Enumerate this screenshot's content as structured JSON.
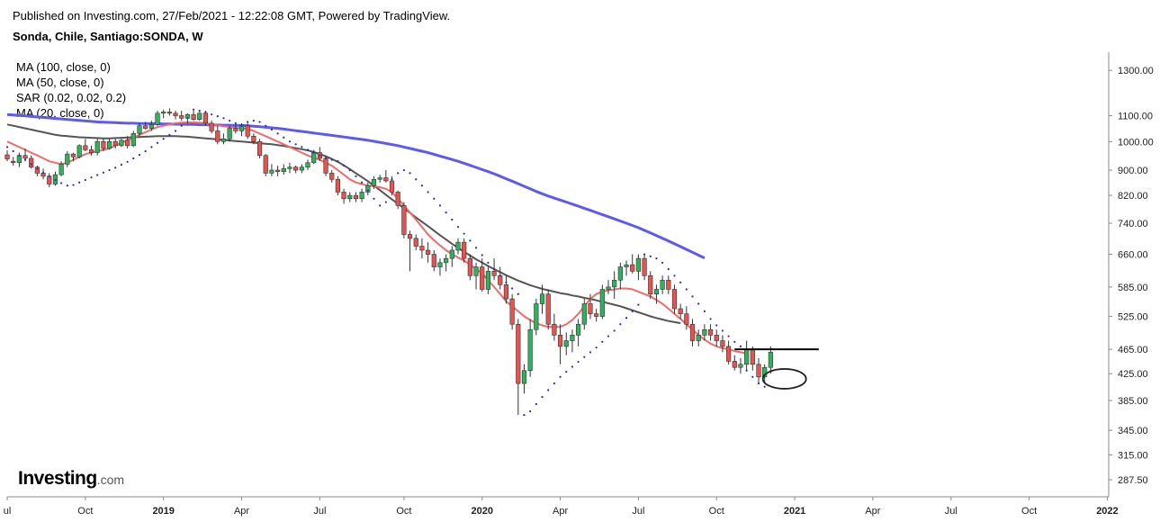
{
  "header": {
    "published": "Published on Investing.com, 27/Feb/2021 - 12:22:08 GMT, Powered by TradingView.",
    "symbol": "Sonda, Chile, Santiago:SONDA, W"
  },
  "legend": {
    "items": [
      "MA (100, close, 0)",
      "MA (50, close, 0)",
      "SAR (0.02, 0.02, 0.2)",
      "MA (20, close, 0)"
    ]
  },
  "logo": {
    "main": "Investing",
    "suffix": ".com"
  },
  "colors": {
    "up": "#2fb35a",
    "down": "#e8524f",
    "ma100": "#5b5bf0",
    "ma50": "#555555",
    "ma20": "#f26b6b",
    "sar": "#2a2aa8",
    "annotation": "#222222"
  },
  "chart_data": {
    "type": "candlestick",
    "y_scale": "log",
    "ylim": [
      270,
      1390
    ],
    "y_ticks": [
      {
        "value": 1300,
        "label": "1300.00"
      },
      {
        "value": 1100,
        "label": "1100.00"
      },
      {
        "value": 1000,
        "label": "1000.00"
      },
      {
        "value": 900,
        "label": "900.00"
      },
      {
        "value": 820,
        "label": "820.00"
      },
      {
        "value": 740,
        "label": "740.00"
      },
      {
        "value": 660,
        "label": "660.00"
      },
      {
        "value": 585,
        "label": "585.00"
      },
      {
        "value": 525,
        "label": "525.00"
      },
      {
        "value": 465,
        "label": "465.00"
      },
      {
        "value": 425,
        "label": "425.00"
      },
      {
        "value": 385,
        "label": "385.00"
      },
      {
        "value": 345,
        "label": "345.00"
      },
      {
        "value": 315,
        "label": "315.00"
      },
      {
        "value": 287.5,
        "label": "287.50"
      }
    ],
    "x_ticks": [
      {
        "week": 0,
        "label": "ul",
        "bold": false
      },
      {
        "week": 13,
        "label": "Oct",
        "bold": false
      },
      {
        "week": 26,
        "label": "2019",
        "bold": true
      },
      {
        "week": 39,
        "label": "Apr",
        "bold": false
      },
      {
        "week": 52,
        "label": "Jul",
        "bold": false
      },
      {
        "week": 66,
        "label": "Oct",
        "bold": false
      },
      {
        "week": 79,
        "label": "2020",
        "bold": true
      },
      {
        "week": 92,
        "label": "Apr",
        "bold": false
      },
      {
        "week": 105,
        "label": "Jul",
        "bold": false
      },
      {
        "week": 118,
        "label": "Oct",
        "bold": false
      },
      {
        "week": 131,
        "label": "2021",
        "bold": true
      },
      {
        "week": 144,
        "label": "Apr",
        "bold": false
      },
      {
        "week": 157,
        "label": "Jul",
        "bold": false
      },
      {
        "week": 170,
        "label": "Oct",
        "bold": false
      },
      {
        "week": 183,
        "label": "2022",
        "bold": true
      }
    ],
    "x_range_weeks": [
      0,
      185
    ],
    "candles": [
      [
        952,
        968,
        930,
        938
      ],
      [
        930,
        945,
        915,
        925
      ],
      [
        925,
        960,
        910,
        950
      ],
      [
        950,
        975,
        930,
        940
      ],
      [
        940,
        950,
        905,
        910
      ],
      [
        910,
        915,
        880,
        890
      ],
      [
        890,
        905,
        870,
        880
      ],
      [
        880,
        890,
        845,
        855
      ],
      [
        855,
        895,
        850,
        885
      ],
      [
        885,
        930,
        880,
        920
      ],
      [
        920,
        965,
        910,
        955
      ],
      [
        955,
        960,
        930,
        945
      ],
      [
        945,
        990,
        940,
        985
      ],
      [
        985,
        1010,
        965,
        970
      ],
      [
        970,
        985,
        950,
        960
      ],
      [
        960,
        1010,
        950,
        1000
      ],
      [
        1000,
        1010,
        965,
        975
      ],
      [
        975,
        1010,
        970,
        1000
      ],
      [
        1000,
        1010,
        975,
        985
      ],
      [
        985,
        1010,
        980,
        1005
      ],
      [
        1005,
        1020,
        975,
        985
      ],
      [
        985,
        1040,
        980,
        1030
      ],
      [
        1030,
        1070,
        1020,
        1060
      ],
      [
        1060,
        1075,
        1045,
        1050
      ],
      [
        1050,
        1080,
        1040,
        1065
      ],
      [
        1065,
        1120,
        1060,
        1110
      ],
      [
        1110,
        1125,
        1090,
        1115
      ],
      [
        1115,
        1130,
        1100,
        1110
      ],
      [
        1110,
        1120,
        1085,
        1100
      ],
      [
        1100,
        1120,
        1080,
        1090
      ],
      [
        1090,
        1110,
        1070,
        1105
      ],
      [
        1105,
        1120,
        1080,
        1085
      ],
      [
        1085,
        1115,
        1080,
        1110
      ],
      [
        1110,
        1120,
        1060,
        1070
      ],
      [
        1070,
        1080,
        1030,
        1040
      ],
      [
        1040,
        1060,
        990,
        1000
      ],
      [
        1000,
        1030,
        990,
        1010
      ],
      [
        1010,
        1060,
        1000,
        1050
      ],
      [
        1050,
        1070,
        1030,
        1040
      ],
      [
        1040,
        1070,
        1020,
        1060
      ],
      [
        1060,
        1070,
        1010,
        1020
      ],
      [
        1020,
        1030,
        990,
        1000
      ],
      [
        1000,
        1010,
        940,
        950
      ],
      [
        950,
        955,
        880,
        890
      ],
      [
        890,
        920,
        880,
        900
      ],
      [
        900,
        915,
        880,
        895
      ],
      [
        895,
        920,
        885,
        905
      ],
      [
        905,
        925,
        890,
        910
      ],
      [
        910,
        915,
        890,
        900
      ],
      [
        900,
        920,
        890,
        910
      ],
      [
        910,
        935,
        900,
        925
      ],
      [
        925,
        970,
        920,
        960
      ],
      [
        960,
        980,
        930,
        940
      ],
      [
        940,
        950,
        880,
        890
      ],
      [
        890,
        900,
        860,
        870
      ],
      [
        870,
        880,
        820,
        830
      ],
      [
        830,
        840,
        795,
        810
      ],
      [
        810,
        830,
        800,
        820
      ],
      [
        820,
        830,
        800,
        810
      ],
      [
        810,
        840,
        800,
        830
      ],
      [
        830,
        860,
        820,
        850
      ],
      [
        850,
        880,
        840,
        870
      ],
      [
        870,
        885,
        860,
        875
      ],
      [
        875,
        900,
        860,
        865
      ],
      [
        865,
        880,
        820,
        830
      ],
      [
        830,
        835,
        780,
        790
      ],
      [
        790,
        800,
        700,
        710
      ],
      [
        710,
        720,
        620,
        700
      ],
      [
        700,
        710,
        670,
        680
      ],
      [
        680,
        700,
        650,
        670
      ],
      [
        670,
        690,
        640,
        660
      ],
      [
        660,
        670,
        620,
        630
      ],
      [
        630,
        650,
        610,
        640
      ],
      [
        640,
        660,
        620,
        650
      ],
      [
        650,
        680,
        630,
        670
      ],
      [
        670,
        700,
        660,
        690
      ],
      [
        690,
        700,
        640,
        650
      ],
      [
        650,
        660,
        600,
        610
      ],
      [
        610,
        640,
        580,
        630
      ],
      [
        630,
        650,
        575,
        580
      ],
      [
        580,
        630,
        570,
        620
      ],
      [
        620,
        650,
        600,
        610
      ],
      [
        610,
        630,
        580,
        590
      ],
      [
        590,
        610,
        550,
        560
      ],
      [
        560,
        570,
        500,
        510
      ],
      [
        510,
        520,
        365,
        410
      ],
      [
        410,
        440,
        395,
        430
      ],
      [
        430,
        520,
        420,
        500
      ],
      [
        500,
        560,
        490,
        550
      ],
      [
        550,
        590,
        530,
        570
      ],
      [
        570,
        580,
        500,
        510
      ],
      [
        510,
        530,
        480,
        490
      ],
      [
        490,
        510,
        440,
        470
      ],
      [
        470,
        495,
        455,
        480
      ],
      [
        480,
        500,
        460,
        490
      ],
      [
        490,
        520,
        470,
        510
      ],
      [
        510,
        560,
        500,
        550
      ],
      [
        550,
        570,
        520,
        530
      ],
      [
        530,
        540,
        515,
        525
      ],
      [
        525,
        590,
        520,
        580
      ],
      [
        580,
        600,
        570,
        585
      ],
      [
        585,
        620,
        560,
        600
      ],
      [
        600,
        640,
        580,
        630
      ],
      [
        630,
        645,
        610,
        635
      ],
      [
        635,
        660,
        615,
        620
      ],
      [
        620,
        660,
        600,
        650
      ],
      [
        650,
        660,
        600,
        610
      ],
      [
        610,
        620,
        560,
        570
      ],
      [
        570,
        590,
        550,
        580
      ],
      [
        580,
        610,
        570,
        600
      ],
      [
        600,
        610,
        570,
        580
      ],
      [
        580,
        590,
        530,
        540
      ],
      [
        540,
        550,
        520,
        530
      ],
      [
        530,
        545,
        500,
        510
      ],
      [
        510,
        520,
        470,
        480
      ],
      [
        480,
        500,
        470,
        490
      ],
      [
        490,
        510,
        480,
        500
      ],
      [
        500,
        510,
        480,
        490
      ],
      [
        490,
        500,
        470,
        480
      ],
      [
        480,
        490,
        460,
        470
      ],
      [
        470,
        480,
        440,
        445
      ],
      [
        445,
        455,
        430,
        435
      ],
      [
        435,
        450,
        425,
        440
      ],
      [
        440,
        480,
        430,
        465
      ],
      [
        465,
        470,
        430,
        440
      ],
      [
        440,
        450,
        410,
        420
      ],
      [
        420,
        440,
        410,
        435
      ],
      [
        435,
        470,
        425,
        460
      ]
    ],
    "lines": {
      "ma20": [
        1000,
        990,
        980,
        970,
        960,
        950,
        940,
        930,
        925,
        920,
        925,
        935,
        945,
        955,
        960,
        965,
        970,
        975,
        985,
        995,
        1005,
        1015,
        1025,
        1035,
        1045,
        1055,
        1060,
        1065,
        1070,
        1072,
        1073,
        1073,
        1072,
        1070,
        1066,
        1062,
        1058,
        1055,
        1052,
        1050,
        1048,
        1040,
        1030,
        1020,
        1010,
        1000,
        990,
        980,
        970,
        960,
        950,
        942,
        935,
        925,
        915,
        900,
        885,
        870,
        860,
        855,
        850,
        848,
        845,
        840,
        830,
        810,
        790,
        770,
        750,
        730,
        710,
        695,
        682,
        670,
        660,
        652,
        645,
        635,
        625,
        615,
        600,
        585,
        570,
        555,
        545,
        535,
        525,
        518,
        512,
        508,
        505,
        505,
        505,
        510,
        518,
        530,
        545,
        560,
        570,
        575,
        578,
        580,
        582,
        582,
        580,
        575,
        570,
        565,
        558,
        550,
        540,
        530,
        520,
        510,
        500,
        490,
        482,
        475,
        470,
        467,
        465,
        462,
        460,
        458
      ],
      "ma50": [
        1065,
        1060,
        1055,
        1050,
        1045,
        1040,
        1035,
        1030,
        1025,
        1022,
        1020,
        1018,
        1016,
        1015,
        1014,
        1013,
        1012,
        1012,
        1013,
        1014,
        1015,
        1016,
        1017,
        1018,
        1019,
        1020,
        1020,
        1020,
        1020,
        1019,
        1018,
        1016,
        1014,
        1012,
        1010,
        1008,
        1006,
        1004,
        1002,
        1000,
        998,
        996,
        994,
        992,
        990,
        987,
        984,
        980,
        976,
        972,
        968,
        962,
        955,
        947,
        938,
        928,
        916,
        903,
        890,
        877,
        864,
        850,
        836,
        822,
        808,
        795,
        782,
        769,
        756,
        744,
        732,
        720,
        708,
        697,
        686,
        676,
        666,
        657,
        648,
        640,
        632,
        625,
        618,
        611,
        605,
        599,
        594,
        589,
        585,
        581,
        578,
        575,
        572,
        570,
        567,
        565,
        562,
        560,
        557,
        554,
        551,
        548,
        545,
        541,
        537,
        533,
        529,
        525,
        522,
        519,
        516,
        514,
        512
      ],
      "ma100": [
        1105,
        1103,
        1101,
        1099,
        1097,
        1095,
        1093,
        1091,
        1089,
        1087,
        1085,
        1083,
        1081,
        1079,
        1077,
        1075,
        1074,
        1073,
        1072,
        1071,
        1070,
        1070,
        1069,
        1069,
        1068,
        1068,
        1067,
        1067,
        1066,
        1066,
        1065,
        1065,
        1064,
        1064,
        1063,
        1063,
        1062,
        1062,
        1061,
        1061,
        1060,
        1058,
        1056,
        1054,
        1052,
        1050,
        1047,
        1044,
        1041,
        1038,
        1035,
        1032,
        1029,
        1026,
        1023,
        1020,
        1017,
        1014,
        1011,
        1008,
        1005,
        1001,
        997,
        993,
        989,
        985,
        980,
        975,
        970,
        965,
        960,
        954,
        948,
        942,
        936,
        930,
        923,
        916,
        909,
        902,
        895,
        888,
        880,
        872,
        864,
        856,
        848,
        840,
        832,
        825,
        818,
        812,
        806,
        800,
        794,
        788,
        782,
        776,
        770,
        764,
        758,
        752,
        746,
        740,
        734,
        728,
        721,
        714,
        707,
        700,
        693,
        686,
        679,
        672,
        665,
        658,
        651
      ],
      "ma100_start_week": 0,
      "ma50_start_week": 0,
      "ma20_start_week": 0
    },
    "sar": [
      980,
      965,
      950,
      935,
      920,
      905,
      892,
      880,
      868,
      858,
      850,
      852,
      860,
      868,
      876,
      884,
      892,
      900,
      908,
      918,
      928,
      940,
      952,
      965,
      980,
      995,
      1010,
      1025,
      1040,
      1060,
      1090,
      1125,
      1120,
      1115,
      1105,
      1098,
      1090,
      1080,
      1070,
      1060,
      1075,
      1080,
      1075,
      1060,
      1045,
      1030,
      1015,
      1000,
      990,
      980,
      970,
      960,
      950,
      940,
      935,
      930,
      915,
      900,
      880,
      860,
      835,
      810,
      790,
      800,
      870,
      890,
      900,
      890,
      870,
      850,
      830,
      810,
      790,
      770,
      750,
      730,
      712,
      694,
      676,
      658,
      640,
      625,
      610,
      595,
      582,
      570,
      365,
      370,
      380,
      390,
      400,
      410,
      420,
      428,
      436,
      444,
      452,
      460,
      468,
      478,
      488,
      498,
      510,
      522,
      535,
      548,
      660,
      655,
      650,
      640,
      625,
      610,
      595,
      580,
      565,
      550,
      535,
      520,
      508,
      498,
      488,
      478,
      470,
      430,
      420,
      410,
      405
    ],
    "resistance_line": {
      "value": 465,
      "from_week": 121,
      "to_week": 135
    }
  }
}
